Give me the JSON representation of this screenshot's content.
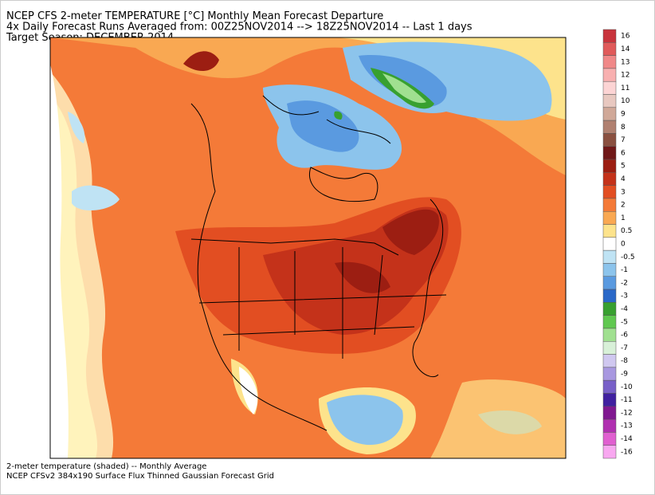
{
  "header": {
    "lines": [
      "NCEP CFS 2-meter TEMPERATURE [°C] Monthly Mean Forecast Departure",
      "4x Daily Forecast Runs Averaged from: 00Z25NOV2014 --> 18Z25NOV2014 -- Last 1 days",
      "Target Season: DECEMBER 2014"
    ]
  },
  "colorbar": {
    "ticks": [
      16,
      14,
      13,
      12,
      11,
      10,
      9,
      8,
      7,
      6,
      5,
      4,
      3,
      2,
      1,
      0.5,
      0,
      -0.5,
      -1,
      -2,
      -3,
      -4,
      -5,
      -6,
      -7,
      -8,
      -9,
      -10,
      -11,
      -12,
      -13,
      -14,
      -16
    ],
    "colors": [
      "#c8343c",
      "#e05a5a",
      "#f08888",
      "#f8b0b0",
      "#fcd4d4",
      "#e8c8c0",
      "#d0a898",
      "#b08070",
      "#8a5040",
      "#701818",
      "#9c1e12",
      "#c4321a",
      "#e24e22",
      "#f47a38",
      "#f9a852",
      "#fde38c",
      "#ffffff",
      "#bfe3f4",
      "#8cc4ec",
      "#5a9ae0",
      "#2a68c8",
      "#38a030",
      "#60c850",
      "#a0e090",
      "#d8f0d8",
      "#d0c8f0",
      "#a898e0",
      "#7860c8",
      "#4020a0",
      "#801890",
      "#b030b0",
      "#e060d0",
      "#f8a8f0"
    ]
  },
  "footer": {
    "lines": [
      "2-meter temperature (shaded) -- Monthly Average",
      "NCEP CFSv2 384x190 Surface Flux Thinned Gaussian Forecast Grid"
    ]
  }
}
